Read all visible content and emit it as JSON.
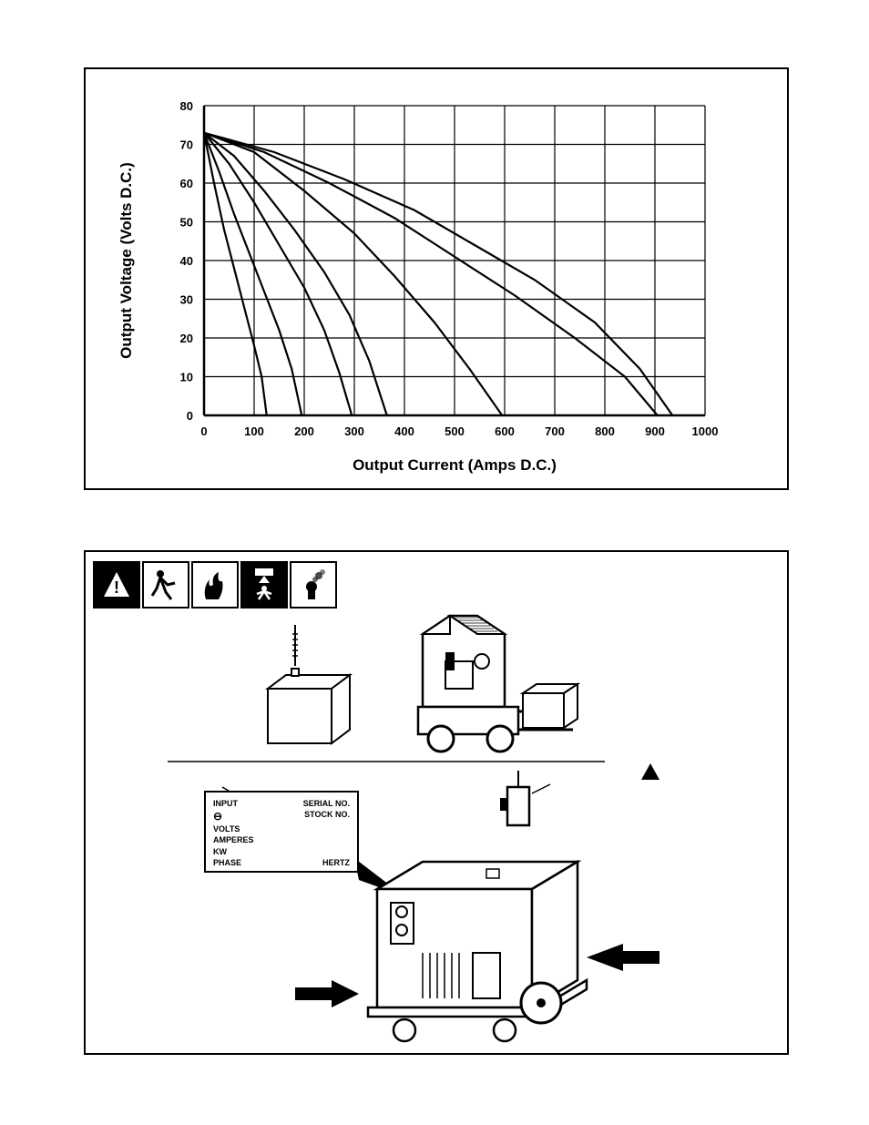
{
  "chart": {
    "type": "line",
    "xlabel": "Output Current (Amps D.C.)",
    "ylabel": "Output Voltage (Volts D.C.)",
    "xlabel_fontsize": 17,
    "ylabel_fontsize": 17,
    "tick_fontsize": 13,
    "xlim": [
      0,
      1000
    ],
    "ylim": [
      0,
      80
    ],
    "xtick_step": 100,
    "ytick_step": 10,
    "background_color": "#ffffff",
    "grid_color": "#000000",
    "axis_color": "#000000",
    "line_color": "#000000",
    "line_width": 2.2,
    "curves": [
      [
        [
          0,
          73
        ],
        [
          20,
          60
        ],
        [
          40,
          48
        ],
        [
          60,
          38
        ],
        [
          80,
          28
        ],
        [
          100,
          18
        ],
        [
          115,
          10
        ],
        [
          125,
          0
        ]
      ],
      [
        [
          0,
          73
        ],
        [
          30,
          63
        ],
        [
          60,
          52
        ],
        [
          90,
          42
        ],
        [
          120,
          32
        ],
        [
          150,
          22
        ],
        [
          175,
          12
        ],
        [
          195,
          0
        ]
      ],
      [
        [
          0,
          73
        ],
        [
          50,
          65
        ],
        [
          100,
          55
        ],
        [
          150,
          44
        ],
        [
          200,
          33
        ],
        [
          240,
          22
        ],
        [
          270,
          11
        ],
        [
          295,
          0
        ]
      ],
      [
        [
          0,
          73
        ],
        [
          60,
          67
        ],
        [
          120,
          58
        ],
        [
          180,
          48
        ],
        [
          240,
          37
        ],
        [
          290,
          26
        ],
        [
          330,
          14
        ],
        [
          365,
          0
        ]
      ],
      [
        [
          0,
          73
        ],
        [
          100,
          68
        ],
        [
          200,
          58
        ],
        [
          300,
          47
        ],
        [
          380,
          36
        ],
        [
          460,
          24
        ],
        [
          530,
          12
        ],
        [
          595,
          0
        ]
      ],
      [
        [
          0,
          73
        ],
        [
          120,
          68
        ],
        [
          250,
          60
        ],
        [
          380,
          51
        ],
        [
          500,
          41
        ],
        [
          620,
          31
        ],
        [
          740,
          20
        ],
        [
          840,
          10
        ],
        [
          905,
          0
        ]
      ],
      [
        [
          0,
          73
        ],
        [
          140,
          68
        ],
        [
          280,
          61
        ],
        [
          420,
          53
        ],
        [
          540,
          44
        ],
        [
          660,
          35
        ],
        [
          780,
          24
        ],
        [
          870,
          12
        ],
        [
          935,
          0
        ]
      ]
    ]
  },
  "nameplate": {
    "input": "INPUT",
    "serial": "SERIAL NO.",
    "stock": "STOCK NO.",
    "volts": "VOLTS",
    "amperes": "AMPERES",
    "kw": "KW",
    "phase": "PHASE",
    "hertz": "HERTZ"
  },
  "hazard_icons": [
    "warning",
    "fall",
    "fire",
    "crush",
    "fumes"
  ]
}
